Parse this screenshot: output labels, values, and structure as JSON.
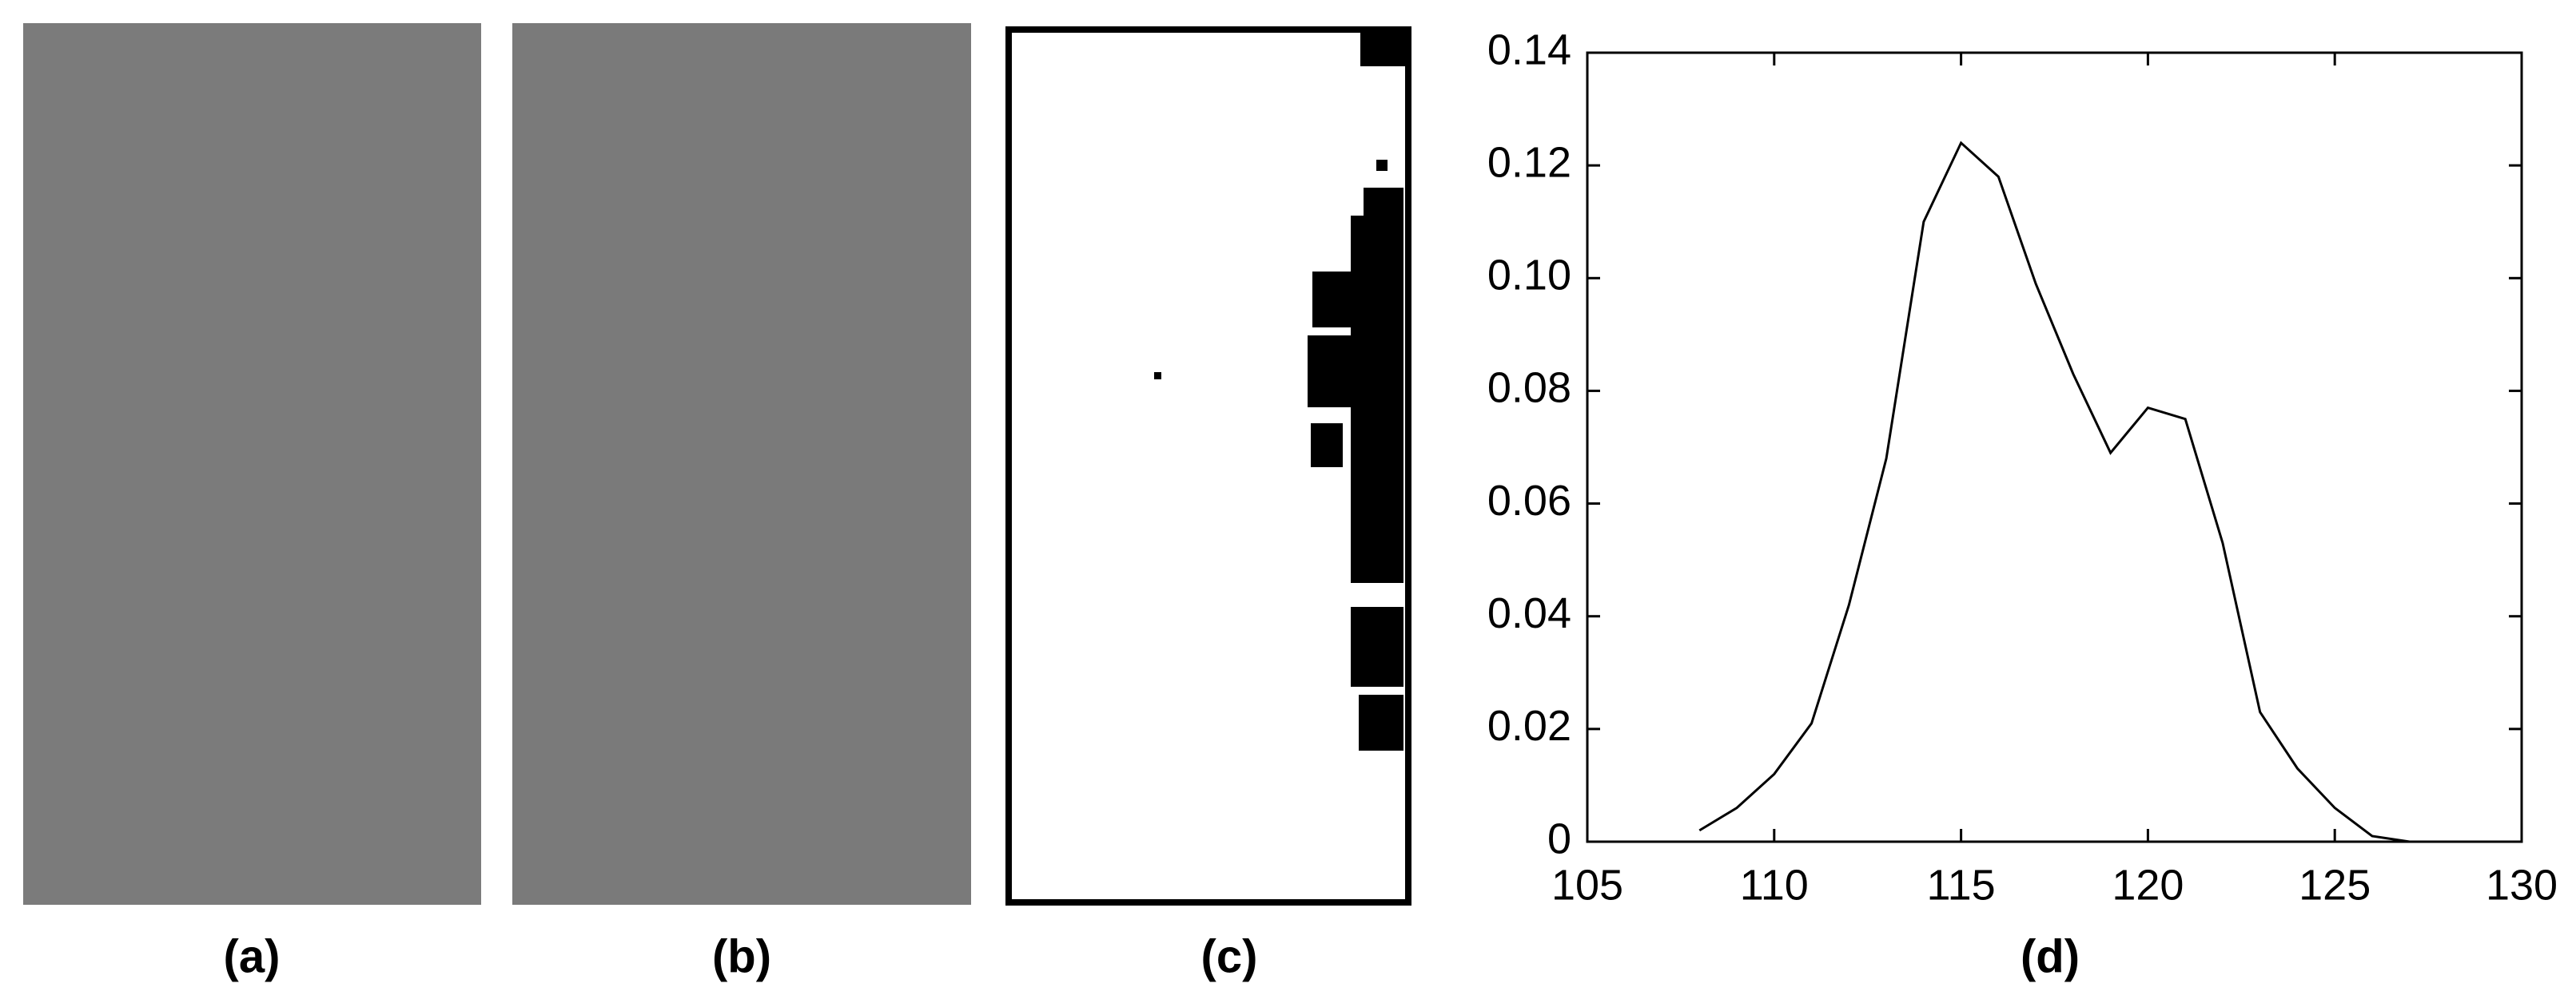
{
  "panel_labels": [
    "(a)",
    "(b)",
    "(c)",
    "(d)"
  ],
  "chart_data": {
    "type": "line",
    "x": [
      108,
      109,
      110,
      111,
      112,
      113,
      114,
      115,
      116,
      117,
      118,
      119,
      120,
      121,
      122,
      123,
      124,
      125,
      126,
      127
    ],
    "series": [
      {
        "color": "#000000",
        "values": [
          0.002,
          0.006,
          0.012,
          0.021,
          0.042,
          0.068,
          0.11,
          0.124,
          0.118,
          0.099,
          0.083,
          0.069,
          0.077,
          0.075,
          0.053,
          0.023,
          0.013,
          0.006,
          0.001,
          0
        ]
      }
    ],
    "xlim": [
      105,
      130
    ],
    "xticks": [
      105,
      110,
      115,
      120,
      125,
      130
    ],
    "ylim": [
      0,
      0.14
    ],
    "yticks": [
      0,
      0.02,
      0.04,
      0.06,
      0.08,
      {
        "value": 0.1,
        "label": "0.10"
      },
      0.12,
      0.14
    ],
    "grid": false
  }
}
